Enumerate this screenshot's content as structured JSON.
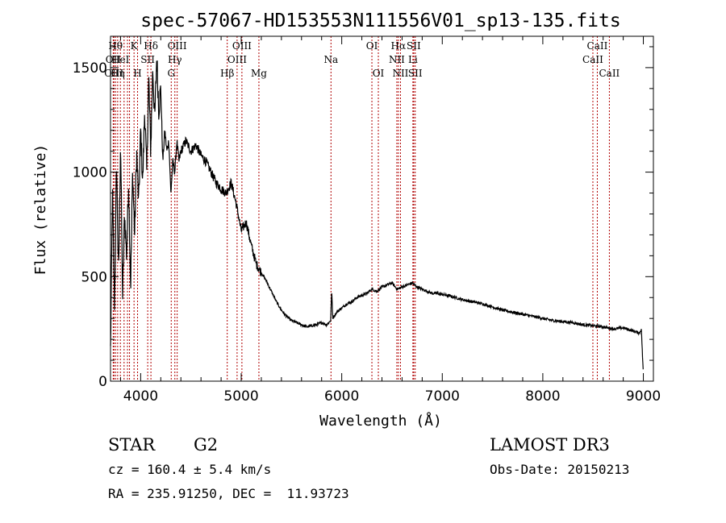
{
  "chart_data": {
    "type": "line",
    "title": "spec-57067-HD153553N111556V01_sp13-135.fits",
    "xlabel": "Wavelength (Å)",
    "ylabel": "Flux (relative)",
    "xlim": [
      3700,
      9100
    ],
    "ylim": [
      0,
      1650
    ],
    "x_ticks": [
      4000,
      5000,
      6000,
      7000,
      8000,
      9000
    ],
    "x_tick_labels": [
      "4000",
      "5000",
      "6000",
      "7000",
      "8000",
      "9000"
    ],
    "y_ticks": [
      0,
      500,
      1000,
      1500
    ],
    "y_tick_labels": [
      "0",
      "500",
      "1000",
      "1500"
    ],
    "grid": false,
    "line_color": "#000000",
    "marker_color": "#b00000",
    "series": [
      {
        "x": [
          3700,
          3720,
          3740,
          3760,
          3780,
          3800,
          3820,
          3840,
          3860,
          3880,
          3900,
          3920,
          3940,
          3960,
          3980,
          4000,
          4020,
          4040,
          4060,
          4080,
          4100,
          4120,
          4140,
          4160,
          4180,
          4200,
          4220,
          4240,
          4260,
          4280,
          4300,
          4320,
          4340,
          4360,
          4380,
          4400,
          4450,
          4500,
          4550,
          4600,
          4650,
          4700,
          4750,
          4800,
          4850,
          4900,
          4950,
          5000,
          5050,
          5100,
          5150,
          5200,
          5250,
          5300,
          5350,
          5400,
          5450,
          5500,
          5550,
          5600,
          5650,
          5700,
          5750,
          5800,
          5850,
          5890,
          5900,
          5910,
          5950,
          6000,
          6050,
          6100,
          6150,
          6200,
          6250,
          6300,
          6350,
          6400,
          6450,
          6500,
          6550,
          6600,
          6650,
          6700,
          6750,
          6800,
          6850,
          6900,
          6950,
          7000,
          7100,
          7200,
          7300,
          7400,
          7500,
          7600,
          7700,
          7800,
          7900,
          8000,
          8100,
          8200,
          8300,
          8400,
          8500,
          8600,
          8700,
          8800,
          8900,
          8960,
          8980,
          9000
        ],
        "y": [
          150,
          900,
          350,
          1050,
          500,
          1150,
          400,
          800,
          600,
          950,
          450,
          1000,
          700,
          1100,
          850,
          1200,
          950,
          1300,
          1000,
          1450,
          1100,
          1500,
          1250,
          1550,
          1300,
          1400,
          1050,
          1200,
          1100,
          1150,
          900,
          1050,
          1000,
          1150,
          1050,
          1100,
          1150,
          1100,
          1130,
          1080,
          1050,
          1000,
          950,
          920,
          900,
          950,
          850,
          720,
          760,
          650,
          560,
          520,
          480,
          430,
          380,
          340,
          310,
          290,
          280,
          270,
          260,
          265,
          270,
          280,
          270,
          290,
          440,
          300,
          330,
          350,
          370,
          380,
          400,
          410,
          420,
          440,
          430,
          450,
          460,
          470,
          440,
          450,
          460,
          470,
          450,
          440,
          430,
          420,
          420,
          415,
          405,
          390,
          380,
          370,
          355,
          340,
          330,
          320,
          310,
          300,
          290,
          285,
          280,
          270,
          265,
          260,
          250,
          255,
          240,
          230,
          250,
          30
        ]
      }
    ],
    "lines": [
      {
        "x": 3727,
        "labels": [
          "OII"
        ],
        "row": 1
      },
      {
        "x": 3734,
        "labels": [
          "OIII"
        ],
        "row": 2
      },
      {
        "x": 3750,
        "labels": [
          "Hθ"
        ],
        "row": 0
      },
      {
        "x": 3771,
        "labels": [
          "Hη"
        ],
        "row": 2
      },
      {
        "x": 3798,
        "labels": [
          "HeI"
        ],
        "row": 1
      },
      {
        "x": 3835,
        "labels": [],
        "row": 0
      },
      {
        "x": 3869,
        "labels": [],
        "row": 0
      },
      {
        "x": 3889,
        "labels": [],
        "row": 0
      },
      {
        "x": 3934,
        "labels": [
          "K"
        ],
        "row": 0
      },
      {
        "x": 3969,
        "labels": [
          "H"
        ],
        "row": 2
      },
      {
        "x": 4070,
        "labels": [
          "SII"
        ],
        "row": 1
      },
      {
        "x": 4102,
        "labels": [
          "Hδ"
        ],
        "row": 0
      },
      {
        "x": 4304,
        "labels": [
          "G"
        ],
        "row": 2
      },
      {
        "x": 4340,
        "labels": [
          "Hγ"
        ],
        "row": 1
      },
      {
        "x": 4363,
        "labels": [
          "OIII"
        ],
        "row": 0
      },
      {
        "x": 4861,
        "labels": [
          "Hβ"
        ],
        "row": 2
      },
      {
        "x": 4959,
        "labels": [
          "OIII"
        ],
        "row": 1
      },
      {
        "x": 5007,
        "labels": [
          "OIII"
        ],
        "row": 0
      },
      {
        "x": 5176,
        "labels": [
          "Mg"
        ],
        "row": 2
      },
      {
        "x": 5893,
        "labels": [
          "Na"
        ],
        "row": 1
      },
      {
        "x": 6300,
        "labels": [
          "OI"
        ],
        "row": 0
      },
      {
        "x": 6364,
        "labels": [
          "OI"
        ],
        "row": 2
      },
      {
        "x": 6548,
        "labels": [
          "NII"
        ],
        "row": 1
      },
      {
        "x": 6563,
        "labels": [
          "Hα"
        ],
        "row": 0
      },
      {
        "x": 6584,
        "labels": [
          "NII"
        ],
        "row": 2
      },
      {
        "x": 6708,
        "labels": [
          "Li"
        ],
        "row": 1
      },
      {
        "x": 6716,
        "labels": [
          "SII"
        ],
        "row": 0
      },
      {
        "x": 6731,
        "labels": [
          "SII"
        ],
        "row": 2
      },
      {
        "x": 8498,
        "labels": [
          "CaII"
        ],
        "row": 1
      },
      {
        "x": 8542,
        "labels": [
          "CaII"
        ],
        "row": 0
      },
      {
        "x": 8662,
        "labels": [
          "CaII"
        ],
        "row": 2
      }
    ]
  },
  "footer": {
    "object_class": "STAR",
    "subclass": "G2",
    "survey": "LAMOST DR3",
    "redshift": "cz = 160.4 ± 5.4 km/s",
    "obs_date": "Obs-Date: 20150213",
    "coords": "RA = 235.91250, DEC =  11.93723"
  }
}
